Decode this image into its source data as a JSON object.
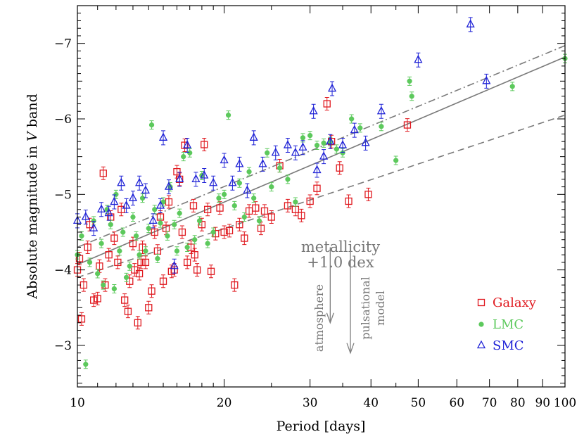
{
  "chart_data": {
    "type": "scatter",
    "xlabel": "Period [days]",
    "ylabel": {
      "pre": "Absolute magnitude in ",
      "italic": "V",
      "post": " band"
    },
    "x_scale": "log",
    "xlim": [
      10,
      100
    ],
    "ylim": [
      -2.45,
      -7.5
    ],
    "x_ticks": [
      10,
      20,
      30,
      40,
      50,
      60,
      70,
      80,
      90,
      100
    ],
    "x_tick_labels": [
      "10",
      "20",
      "30",
      "40",
      "50",
      "60",
      "70",
      "80",
      "90",
      "100"
    ],
    "y_ticks": [
      -3,
      -4,
      -5,
      -6,
      -7
    ],
    "y_tick_labels": [
      "−3",
      "−4",
      "−5",
      "−6",
      "−7"
    ],
    "lines": [
      {
        "style": "dashdot",
        "color": "#7a7a7a",
        "x": [
          10,
          100
        ],
        "y": [
          -4.3,
          -6.97
        ]
      },
      {
        "style": "solid",
        "color": "#7a7a7a",
        "x": [
          10,
          100
        ],
        "y": [
          -4.07,
          -6.82
        ]
      },
      {
        "style": "dashed",
        "color": "#7a7a7a",
        "x": [
          10,
          100
        ],
        "y": [
          -3.9,
          -6.05
        ]
      }
    ],
    "annotations": {
      "metallicity_line1": "metallicity",
      "metallicity_line2": "+1.0 dex",
      "atmosphere": "atmosphere",
      "pulsational_line1": "pulsational",
      "pulsational_line2": "model",
      "color": "#808080",
      "arrow_atmosphere": {
        "x": 33,
        "y_from": -4.3,
        "y_to": -3.3
      },
      "arrow_pulsational": {
        "x": 36.3,
        "y_from": -4.3,
        "y_to": -2.9
      }
    },
    "legend": {
      "position": "bottom-right"
    },
    "series": [
      {
        "name": "Galaxy",
        "marker": "square",
        "color": "#e0191f",
        "points": [
          [
            10.0,
            -4.0
          ],
          [
            10.1,
            -4.15
          ],
          [
            10.2,
            -3.35
          ],
          [
            10.3,
            -3.8
          ],
          [
            10.5,
            -4.3
          ],
          [
            10.6,
            -4.6
          ],
          [
            10.8,
            -3.6
          ],
          [
            11.0,
            -3.62
          ],
          [
            11.1,
            -4.05
          ],
          [
            11.3,
            -5.28
          ],
          [
            11.4,
            -3.8
          ],
          [
            11.6,
            -4.2
          ],
          [
            11.7,
            -4.7
          ],
          [
            11.9,
            -4.42
          ],
          [
            12.1,
            -4.1
          ],
          [
            12.3,
            -4.8
          ],
          [
            12.5,
            -3.6
          ],
          [
            12.7,
            -3.45
          ],
          [
            12.8,
            -3.85
          ],
          [
            13.0,
            -4.35
          ],
          [
            13.1,
            -4.0
          ],
          [
            13.3,
            -3.3
          ],
          [
            13.4,
            -3.95
          ],
          [
            13.5,
            -4.1
          ],
          [
            13.6,
            -4.3
          ],
          [
            13.8,
            -4.1
          ],
          [
            14.0,
            -3.5
          ],
          [
            14.2,
            -3.72
          ],
          [
            14.4,
            -4.5
          ],
          [
            14.6,
            -4.25
          ],
          [
            14.8,
            -4.7
          ],
          [
            15.0,
            -3.85
          ],
          [
            15.2,
            -4.55
          ],
          [
            15.4,
            -4.9
          ],
          [
            15.6,
            -3.98
          ],
          [
            15.8,
            -4.0
          ],
          [
            16.0,
            -5.3
          ],
          [
            16.2,
            -5.2
          ],
          [
            16.4,
            -4.5
          ],
          [
            16.6,
            -5.65
          ],
          [
            16.8,
            -4.1
          ],
          [
            17.1,
            -4.3
          ],
          [
            17.3,
            -4.85
          ],
          [
            17.4,
            -4.2
          ],
          [
            17.6,
            -4.0
          ],
          [
            18.0,
            -4.6
          ],
          [
            18.2,
            -5.66
          ],
          [
            18.5,
            -4.8
          ],
          [
            18.8,
            -3.98
          ],
          [
            19.2,
            -4.48
          ],
          [
            19.6,
            -4.82
          ],
          [
            20.0,
            -4.5
          ],
          [
            20.5,
            -4.52
          ],
          [
            21.0,
            -3.8
          ],
          [
            21.5,
            -4.6
          ],
          [
            22.0,
            -4.42
          ],
          [
            22.5,
            -4.78
          ],
          [
            23.2,
            -4.82
          ],
          [
            23.8,
            -4.55
          ],
          [
            24.2,
            -4.78
          ],
          [
            25.0,
            -4.7
          ],
          [
            26.0,
            -5.38
          ],
          [
            27.0,
            -4.85
          ],
          [
            28.0,
            -4.8
          ],
          [
            28.8,
            -4.72
          ],
          [
            30.0,
            -4.91
          ],
          [
            31.0,
            -5.08
          ],
          [
            32.5,
            -6.2
          ],
          [
            33.2,
            -5.7
          ],
          [
            34.5,
            -5.35
          ],
          [
            36.0,
            -4.91
          ],
          [
            39.5,
            -5.0
          ],
          [
            47.5,
            -5.92
          ]
        ]
      },
      {
        "name": "LMC",
        "marker": "circle",
        "color": "#5cc95c",
        "points": [
          [
            10.0,
            -4.2
          ],
          [
            10.2,
            -4.45
          ],
          [
            10.4,
            -2.75
          ],
          [
            10.6,
            -4.1
          ],
          [
            10.8,
            -4.65
          ],
          [
            11.0,
            -3.95
          ],
          [
            11.2,
            -4.35
          ],
          [
            11.3,
            -3.8
          ],
          [
            11.5,
            -4.8
          ],
          [
            11.7,
            -4.6
          ],
          [
            11.9,
            -3.75
          ],
          [
            12.0,
            -5.0
          ],
          [
            12.2,
            -4.25
          ],
          [
            12.4,
            -4.5
          ],
          [
            12.6,
            -3.9
          ],
          [
            12.8,
            -4.05
          ],
          [
            13.0,
            -4.7
          ],
          [
            13.2,
            -4.45
          ],
          [
            13.4,
            -4.2
          ],
          [
            13.6,
            -4.95
          ],
          [
            13.8,
            -4.25
          ],
          [
            14.0,
            -4.55
          ],
          [
            14.2,
            -5.92
          ],
          [
            14.4,
            -4.8
          ],
          [
            14.6,
            -4.15
          ],
          [
            14.8,
            -4.62
          ],
          [
            15.0,
            -4.9
          ],
          [
            15.3,
            -4.45
          ],
          [
            15.5,
            -5.1
          ],
          [
            15.8,
            -4.6
          ],
          [
            16.0,
            -4.25
          ],
          [
            16.2,
            -4.75
          ],
          [
            16.5,
            -5.5
          ],
          [
            16.8,
            -4.3
          ],
          [
            17.0,
            -5.55
          ],
          [
            17.4,
            -4.4
          ],
          [
            17.8,
            -4.65
          ],
          [
            18.0,
            -5.25
          ],
          [
            18.5,
            -4.35
          ],
          [
            19.0,
            -4.5
          ],
          [
            19.5,
            -4.95
          ],
          [
            20.0,
            -5.0
          ],
          [
            20.4,
            -6.05
          ],
          [
            21.0,
            -4.85
          ],
          [
            21.5,
            -5.15
          ],
          [
            22.0,
            -4.7
          ],
          [
            22.5,
            -5.3
          ],
          [
            23.0,
            -4.95
          ],
          [
            23.6,
            -4.65
          ],
          [
            24.5,
            -5.55
          ],
          [
            25.0,
            -5.1
          ],
          [
            26.0,
            -5.35
          ],
          [
            27.0,
            -5.2
          ],
          [
            28.0,
            -4.9
          ],
          [
            29.0,
            -5.75
          ],
          [
            30.0,
            -5.78
          ],
          [
            31.0,
            -5.65
          ],
          [
            32.0,
            -5.68
          ],
          [
            33.0,
            -5.7
          ],
          [
            34.0,
            -5.6
          ],
          [
            35.0,
            -5.55
          ],
          [
            36.5,
            -6.0
          ],
          [
            38.0,
            -5.88
          ],
          [
            42.0,
            -5.9
          ],
          [
            45.0,
            -5.45
          ],
          [
            48.5,
            -6.3
          ],
          [
            48.0,
            -6.5
          ],
          [
            78.0,
            -6.43
          ],
          [
            100.0,
            -6.8
          ]
        ]
      },
      {
        "name": "SMC",
        "marker": "triangle",
        "color": "#1f22d6",
        "points": [
          [
            10.0,
            -4.65
          ],
          [
            10.4,
            -4.7
          ],
          [
            10.8,
            -4.55
          ],
          [
            11.2,
            -4.8
          ],
          [
            11.6,
            -4.75
          ],
          [
            11.9,
            -4.9
          ],
          [
            12.3,
            -5.15
          ],
          [
            12.6,
            -4.85
          ],
          [
            13.0,
            -4.95
          ],
          [
            13.4,
            -5.15
          ],
          [
            13.8,
            -5.05
          ],
          [
            14.3,
            -4.65
          ],
          [
            14.8,
            -4.85
          ],
          [
            15.0,
            -5.75
          ],
          [
            15.4,
            -5.1
          ],
          [
            15.8,
            -4.05
          ],
          [
            16.2,
            -5.2
          ],
          [
            16.8,
            -5.65
          ],
          [
            17.5,
            -5.2
          ],
          [
            18.2,
            -5.25
          ],
          [
            19.0,
            -5.15
          ],
          [
            20.0,
            -5.45
          ],
          [
            20.8,
            -5.15
          ],
          [
            21.5,
            -5.4
          ],
          [
            22.3,
            -5.05
          ],
          [
            23.0,
            -5.75
          ],
          [
            24.0,
            -5.4
          ],
          [
            25.5,
            -5.55
          ],
          [
            27.0,
            -5.65
          ],
          [
            28.0,
            -5.55
          ],
          [
            29.0,
            -5.62
          ],
          [
            30.5,
            -6.1
          ],
          [
            31.0,
            -5.32
          ],
          [
            32.0,
            -5.5
          ],
          [
            33.0,
            -5.7
          ],
          [
            33.3,
            -6.4
          ],
          [
            35.0,
            -5.65
          ],
          [
            37.0,
            -5.85
          ],
          [
            39.0,
            -5.68
          ],
          [
            42.0,
            -6.1
          ],
          [
            50.0,
            -6.78
          ],
          [
            64.0,
            -7.25
          ],
          [
            69.0,
            -6.5
          ]
        ]
      }
    ]
  }
}
